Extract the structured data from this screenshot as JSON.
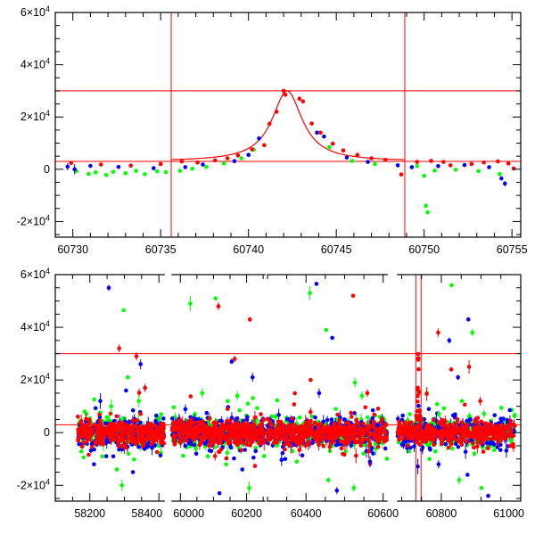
{
  "chart_data": [
    {
      "type": "scatter",
      "panel": "top",
      "title": "",
      "xlabel": "",
      "ylabel": "",
      "xlim": [
        60729,
        60755.5
      ],
      "ylim": [
        -26000,
        60000
      ],
      "x_ticks": [
        60730,
        60735,
        60740,
        60745,
        60750,
        60755
      ],
      "y_ticks": [
        -20000,
        0,
        20000,
        40000,
        60000
      ],
      "y_tick_labels": [
        {
          "mantissa": "-2×10",
          "exp": "4"
        },
        {
          "mantissa": "0",
          "exp": ""
        },
        {
          "mantissa": "2×10",
          "exp": "4"
        },
        {
          "mantissa": "4×10",
          "exp": "4"
        },
        {
          "mantissa": "6×10",
          "exp": "4"
        }
      ],
      "hlines": [
        3000,
        30000
      ],
      "vlines": [
        60735.6,
        60748.9
      ],
      "model_curve": {
        "color": "#ff0000",
        "baseline": 3000,
        "peak_x": 60742.2,
        "peak_amplitude": 27000,
        "width": 1.05,
        "x_range": [
          60735.6,
          60748.9
        ]
      },
      "series": [
        {
          "name": "green",
          "color": "#00ff00",
          "points": [
            [
              60730.2,
              -700
            ],
            [
              60730.9,
              -1800
            ],
            [
              60731.3,
              -1200
            ],
            [
              60731.9,
              -2200
            ],
            [
              60732.3,
              -1000
            ],
            [
              60733.0,
              -1500
            ],
            [
              60733.6,
              -600
            ],
            [
              60734.1,
              -1900
            ],
            [
              60734.8,
              -800
            ],
            [
              60735.3,
              -1100
            ],
            [
              60736.1,
              -600
            ],
            [
              60736.8,
              200
            ],
            [
              60737.6,
              900
            ],
            [
              60738.6,
              2200
            ],
            [
              60739.6,
              4200
            ],
            [
              60740.3,
              7500
            ],
            [
              60744.6,
              8500
            ],
            [
              60745.9,
              3200
            ],
            [
              60747.2,
              2000
            ],
            [
              60749.6,
              1200
            ],
            [
              60750.0,
              -2500
            ],
            [
              60750.1,
              -14000
            ],
            [
              60750.2,
              -16500
            ],
            [
              60750.6,
              -500
            ],
            [
              60751.8,
              -200
            ],
            [
              60753.1,
              -700
            ],
            [
              60754.3,
              -1800
            ]
          ],
          "errors": [
            800,
            700,
            600,
            700,
            600,
            700,
            600,
            700,
            600,
            700,
            500,
            500,
            500,
            600,
            600,
            600,
            600,
            500,
            500,
            500,
            700,
            900,
            900,
            600,
            500,
            600,
            700
          ]
        },
        {
          "name": "blue",
          "color": "#0000ff",
          "points": [
            [
              60729.7,
              1000
            ],
            [
              60730.1,
              0
            ],
            [
              60731.0,
              1300
            ],
            [
              60732.6,
              900
            ],
            [
              60734.6,
              400
            ],
            [
              60736.4,
              800
            ],
            [
              60737.4,
              1800
            ],
            [
              60739.2,
              3100
            ],
            [
              60740.0,
              5500
            ],
            [
              60740.6,
              11800
            ],
            [
              60743.9,
              14000
            ],
            [
              60744.3,
              12500
            ],
            [
              60745.6,
              4500
            ],
            [
              60746.8,
              2800
            ],
            [
              60748.5,
              1500
            ],
            [
              60749.3,
              800
            ],
            [
              60750.8,
              1200
            ],
            [
              60752.3,
              1600
            ],
            [
              60753.7,
              800
            ],
            [
              60754.4,
              -3500
            ],
            [
              60754.6,
              -5500
            ]
          ],
          "errors": [
            1400,
            2000,
            700,
            600,
            600,
            600,
            500,
            600,
            700,
            800,
            800,
            700,
            600,
            500,
            500,
            600,
            600,
            600,
            600,
            800,
            1000
          ]
        },
        {
          "name": "red",
          "color": "#ff0000",
          "points": [
            [
              60729.9,
              2400
            ],
            [
              60731.6,
              1800
            ],
            [
              60733.3,
              1400
            ],
            [
              60735.0,
              2000
            ],
            [
              60736.2,
              3000
            ],
            [
              60737.1,
              2600
            ],
            [
              60738.1,
              3400
            ],
            [
              60738.8,
              4200
            ],
            [
              60739.4,
              5300
            ],
            [
              60740.2,
              7600
            ],
            [
              60740.9,
              9200
            ],
            [
              60741.2,
              17400
            ],
            [
              60741.6,
              22000
            ],
            [
              60742.0,
              30000
            ],
            [
              60742.1,
              28500
            ],
            [
              60742.9,
              27000
            ],
            [
              60743.1,
              26000
            ],
            [
              60743.6,
              17500
            ],
            [
              60744.1,
              14000
            ],
            [
              60744.8,
              9800
            ],
            [
              60745.4,
              7200
            ],
            [
              60746.2,
              5500
            ],
            [
              60747.0,
              4200
            ],
            [
              60747.8,
              3600
            ],
            [
              60748.7,
              -2000
            ],
            [
              60749.6,
              2800
            ],
            [
              60750.4,
              3200
            ],
            [
              60751.1,
              2800
            ],
            [
              60751.5,
              1500
            ],
            [
              60752.7,
              2000
            ],
            [
              60753.4,
              2600
            ],
            [
              60754.2,
              3000
            ],
            [
              60754.8,
              2200
            ],
            [
              60755.1,
              300
            ]
          ],
          "errors": [
            500,
            500,
            500,
            500,
            500,
            500,
            500,
            500,
            500,
            500,
            500,
            600,
            600,
            700,
            700,
            700,
            700,
            600,
            600,
            500,
            500,
            500,
            500,
            500,
            600,
            500,
            500,
            500,
            500,
            500,
            500,
            500,
            500,
            500
          ]
        }
      ]
    },
    {
      "type": "scatter",
      "panel": "bottom",
      "title": "",
      "xlabel": "",
      "ylabel": "",
      "xlim": [
        58100,
        61000
      ],
      "ylim": [
        -26000,
        60000
      ],
      "x_ticks": [
        58200,
        58400,
        60000,
        60200,
        60400,
        60600,
        60800,
        61000
      ],
      "y_ticks": [
        -20000,
        0,
        20000,
        40000,
        60000
      ],
      "y_tick_labels": [
        {
          "mantissa": "-2×10",
          "exp": "4"
        },
        {
          "mantissa": "0",
          "exp": ""
        },
        {
          "mantissa": "2×10",
          "exp": "4"
        },
        {
          "mantissa": "4×10",
          "exp": "4"
        },
        {
          "mantissa": "6×10",
          "exp": "4"
        }
      ],
      "hlines": [
        3000,
        30000
      ],
      "vlines": [
        60735.6,
        60748.9
      ],
      "axis_breaks": [
        {
          "after": 58415,
          "resume": 59975
        },
        {
          "after": 60255,
          "resume": 60300
        },
        {
          "after": 60610,
          "resume": 60690
        }
      ],
      "seasons": [
        [
          58165,
          58415
        ],
        [
          59975,
          60255
        ],
        [
          60300,
          60610
        ],
        [
          60690,
          60985
        ]
      ],
      "dense_band": {
        "center": 0,
        "spread": 2600
      },
      "flare": {
        "x": 60742,
        "peak": 30000
      },
      "series": [
        {
          "name": "green",
          "color": "#00ff00",
          "outliers": [
            [
              58262,
              10000
            ],
            [
              58298,
              46500
            ],
            [
              58310,
              21000
            ],
            [
              58342,
              12000
            ],
            [
              58185,
              8000
            ],
            [
              58236,
              -9000
            ],
            [
              58278,
              -14000
            ],
            [
              58293,
              -20000
            ],
            [
              58312,
              -8000
            ],
            [
              60030,
              49000
            ],
            [
              60066,
              15000
            ],
            [
              60106,
              51000
            ],
            [
              60143,
              12000
            ],
            [
              60172,
              14000
            ],
            [
              60204,
              11000
            ],
            [
              60083,
              -9000
            ],
            [
              60138,
              -12000
            ],
            [
              60208,
              -21000
            ],
            [
              60410,
              53000
            ],
            [
              60452,
              39000
            ],
            [
              60527,
              19000
            ],
            [
              60545,
              14000
            ],
            [
              60376,
              -11000
            ],
            [
              60458,
              -18000
            ],
            [
              60524,
              -21000
            ],
            [
              60794,
              7000
            ],
            [
              60826,
              56000
            ],
            [
              60878,
              38000
            ],
            [
              60852,
              12000
            ],
            [
              60770,
              -10000
            ],
            [
              60845,
              -18000
            ],
            [
              60901,
              -21000
            ]
          ]
        },
        {
          "name": "blue",
          "color": "#0000ff",
          "outliers": [
            [
              58255,
              55000
            ],
            [
              58347,
              26000
            ],
            [
              58305,
              16000
            ],
            [
              58212,
              -12000
            ],
            [
              58268,
              -9000
            ],
            [
              58325,
              -15000
            ],
            [
              60155,
              27000
            ],
            [
              60218,
              21000
            ],
            [
              60048,
              -8000
            ],
            [
              60118,
              -23000
            ],
            [
              60187,
              -14000
            ],
            [
              60427,
              56500
            ],
            [
              60468,
              36000
            ],
            [
              60434,
              15000
            ],
            [
              60346,
              -10000
            ],
            [
              60480,
              -22000
            ],
            [
              60566,
              -11000
            ],
            [
              60820,
              35000
            ],
            [
              60842,
              21000
            ],
            [
              60868,
              43000
            ],
            [
              60793,
              -12000
            ],
            [
              60866,
              -16000
            ],
            [
              60918,
              -24000
            ]
          ]
        },
        {
          "name": "red",
          "color": "#ff0000",
          "outliers": [
            [
              58285,
              32000
            ],
            [
              58335,
              29000
            ],
            [
              58360,
              17000
            ],
            [
              58230,
              -4000
            ],
            [
              60115,
              48000
            ],
            [
              60164,
              28000
            ],
            [
              60210,
              43000
            ],
            [
              60243,
              7000
            ],
            [
              60088,
              -5000
            ],
            [
              60522,
              52000
            ],
            [
              60559,
              15000
            ],
            [
              60412,
              20000
            ],
            [
              60492,
              -6000
            ],
            [
              60792,
              38000
            ],
            [
              60825,
              24000
            ],
            [
              60870,
              25000
            ],
            [
              60898,
              12000
            ],
            [
              60880,
              -4000
            ]
          ]
        }
      ]
    }
  ]
}
